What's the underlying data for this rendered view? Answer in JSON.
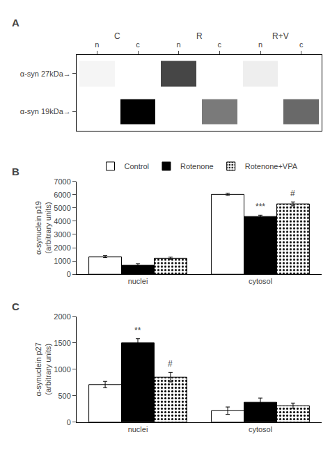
{
  "chart_data": [
    {
      "type": "heatmap",
      "title": "A",
      "x": [
        "n",
        "c",
        "n",
        "c",
        "n",
        "c"
      ],
      "y": [
        "α-syn 27kDa→",
        "α-syn 19kDa→"
      ],
      "annotations": [
        "C",
        "R",
        "R+V"
      ],
      "values": [
        [
          0.1,
          0.07,
          0.6,
          0.07,
          0.12,
          0.07
        ],
        [
          0.07,
          0.8,
          0.07,
          0.45,
          0.07,
          0.5
        ]
      ]
    },
    {
      "type": "bar",
      "title": "B",
      "ylabel": "α-synuclein p19\n(arbitrary units)",
      "categories": [
        "nuclei",
        "cytosol"
      ],
      "series": [
        {
          "name": "Control",
          "color": "#ffffff",
          "values": [
            1320,
            6020
          ],
          "errors": [
            80,
            80
          ]
        },
        {
          "name": "Rotenone",
          "color": "#000000",
          "values": [
            680,
            4350
          ],
          "errors": [
            120,
            100
          ]
        },
        {
          "name": "Rotenone+VPA",
          "color": "#ffffff",
          "marker": "dots",
          "values": [
            1200,
            5300
          ],
          "errors": [
            100,
            150
          ]
        }
      ],
      "annotations": [
        {
          "text": "***",
          "series": "Rotenone",
          "category": "cytosol"
        },
        {
          "text": "#",
          "series": "Rotenone+VPA",
          "category": "cytosol"
        }
      ],
      "ylim": [
        0,
        7000
      ],
      "yticks": [
        0,
        1000,
        2000,
        3000,
        4000,
        5000,
        6000,
        7000
      ],
      "grid": false,
      "legend": "top"
    },
    {
      "type": "bar",
      "title": "C",
      "ylabel": "α-synuclein p27\n(arbitrary units)",
      "categories": [
        "nuclei",
        "cytosol"
      ],
      "series": [
        {
          "name": "Control",
          "color": "#ffffff",
          "values": [
            710,
            215
          ],
          "errors": [
            60,
            70
          ]
        },
        {
          "name": "Rotenone",
          "color": "#000000",
          "values": [
            1500,
            375
          ],
          "errors": [
            80,
            80
          ]
        },
        {
          "name": "Rotenone+VPA",
          "color": "#ffffff",
          "marker": "dots",
          "values": [
            850,
            310
          ],
          "errors": [
            90,
            50
          ]
        }
      ],
      "annotations": [
        {
          "text": "**",
          "series": "Rotenone",
          "category": "nuclei"
        },
        {
          "text": "#",
          "series": "Rotenone+VPA",
          "category": "nuclei"
        }
      ],
      "ylim": [
        0,
        2000
      ],
      "yticks": [
        0,
        500,
        1000,
        1500,
        2000
      ],
      "grid": false
    }
  ]
}
